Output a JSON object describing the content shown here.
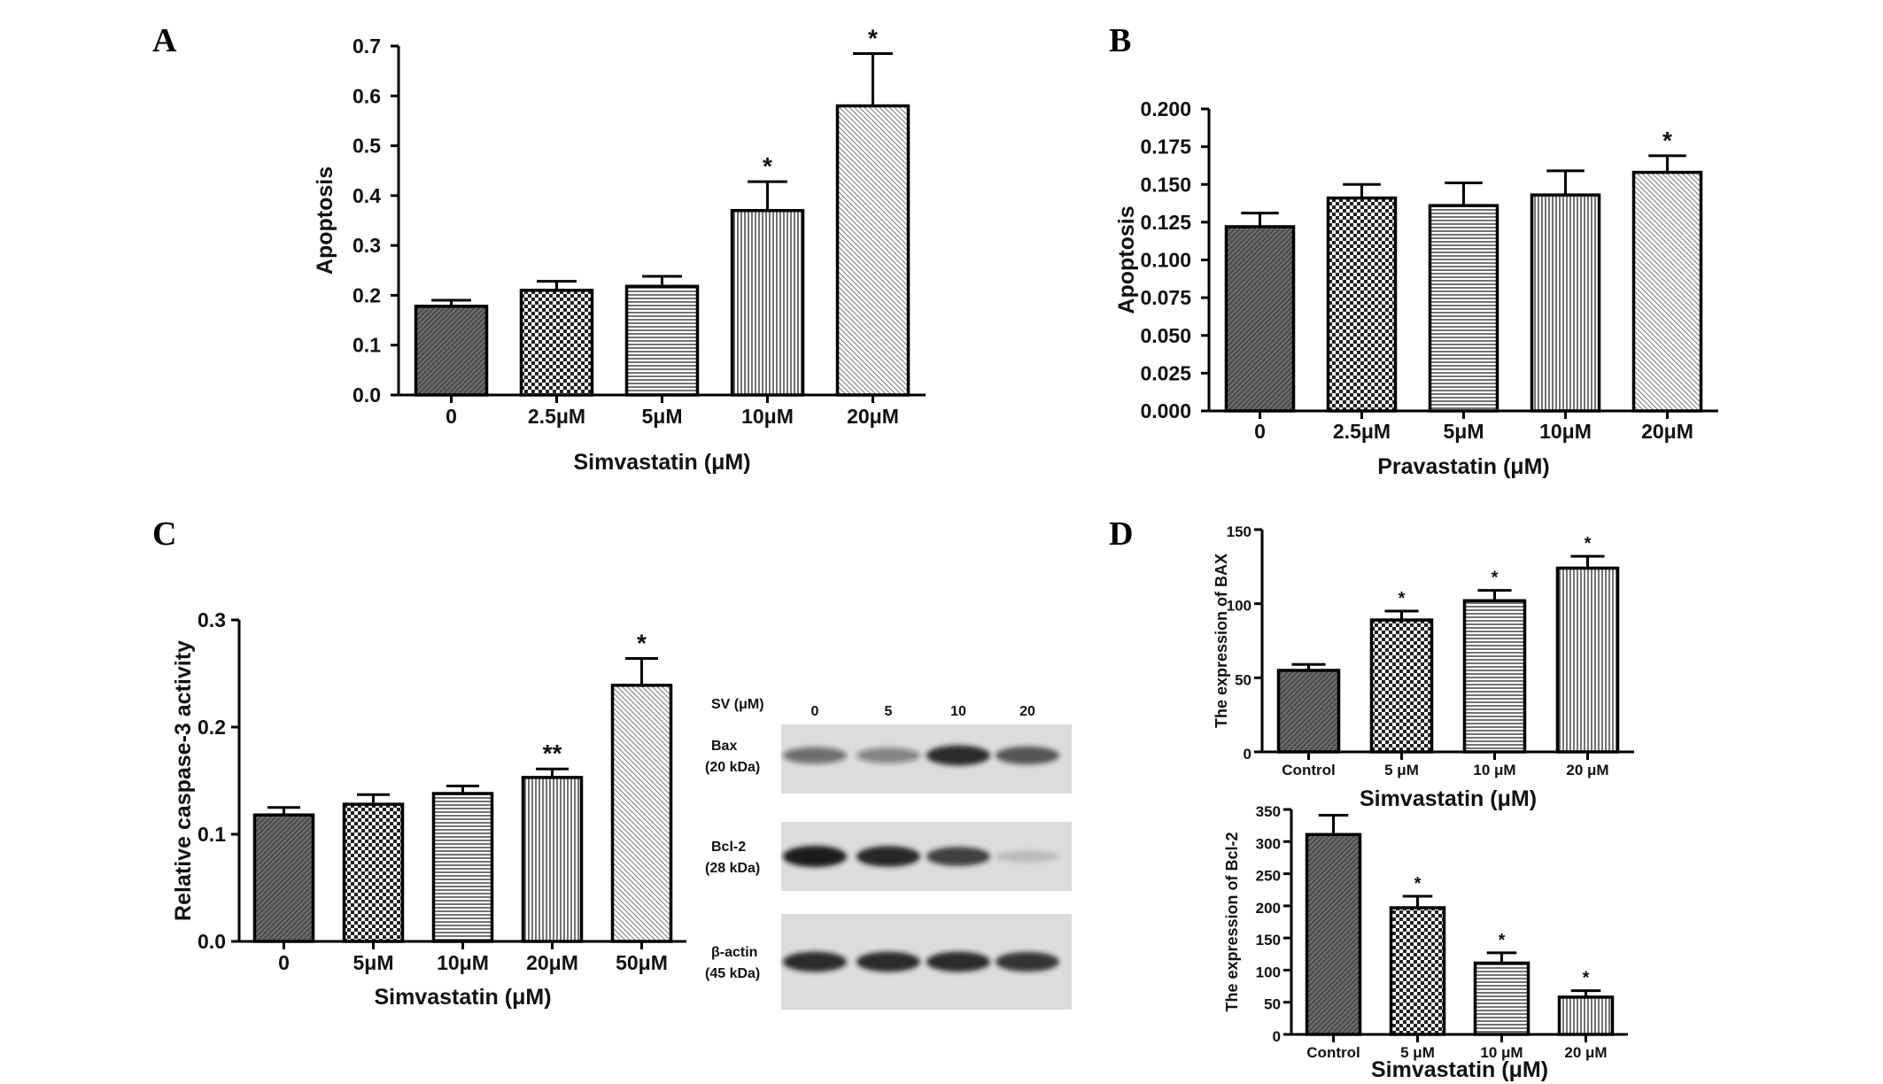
{
  "panels": {
    "A": "A",
    "B": "B",
    "C": "C",
    "D": "D"
  },
  "western_blot": {
    "header": "SV (μM)",
    "lanes": [
      "0",
      "5",
      "10",
      "20"
    ],
    "bands": [
      {
        "name": "Bax",
        "kda": "(20 kDa)",
        "intensity": [
          0.55,
          0.45,
          0.9,
          0.7
        ]
      },
      {
        "name": "Bcl-2",
        "kda": "(28 kDa)",
        "intensity": [
          1.0,
          0.95,
          0.8,
          0.15
        ]
      },
      {
        "name": "β-actin",
        "kda": "(45 kDa)",
        "intensity": [
          0.9,
          0.9,
          0.9,
          0.85
        ]
      }
    ]
  },
  "colors": {
    "axis": "#000000",
    "bar_fill": "#8a8a8a",
    "blot_bg": "#dcdcdc",
    "band": "#1a1a1a"
  },
  "chart_data": [
    {
      "id": "A",
      "type": "bar",
      "categories": [
        "0",
        "2.5μM",
        "5μM",
        "10μM",
        "20μM"
      ],
      "values": [
        0.178,
        0.21,
        0.218,
        0.37,
        0.58
      ],
      "errors": [
        0.012,
        0.018,
        0.02,
        0.058,
        0.105
      ],
      "significance": [
        "",
        "",
        "",
        "*",
        "*"
      ],
      "xlabel": "Simvastatin (μM)",
      "ylabel": "Apoptosis",
      "ylim": [
        0,
        0.7
      ],
      "yticks": [
        "0.0",
        "0.1",
        "0.2",
        "0.3",
        "0.4",
        "0.5",
        "0.6",
        "0.7"
      ],
      "grid": false
    },
    {
      "id": "B",
      "type": "bar",
      "categories": [
        "0",
        "2.5μM",
        "5μM",
        "10μM",
        "20μM"
      ],
      "values": [
        0.122,
        0.141,
        0.136,
        0.143,
        0.158
      ],
      "errors": [
        0.009,
        0.009,
        0.015,
        0.016,
        0.011
      ],
      "significance": [
        "",
        "",
        "",
        "",
        "*"
      ],
      "xlabel": "Pravastatin (μM)",
      "ylabel": "Apoptosis",
      "ylim": [
        0,
        0.2
      ],
      "yticks": [
        "0.000",
        "0.025",
        "0.050",
        "0.075",
        "0.100",
        "0.125",
        "0.150",
        "0.175",
        "0.200"
      ],
      "grid": false
    },
    {
      "id": "C",
      "type": "bar",
      "categories": [
        "0",
        "5μM",
        "10μM",
        "20μM",
        "50μM"
      ],
      "values": [
        0.118,
        0.128,
        0.138,
        0.153,
        0.239
      ],
      "errors": [
        0.007,
        0.009,
        0.007,
        0.008,
        0.025
      ],
      "significance": [
        "",
        "",
        "",
        "**",
        "*"
      ],
      "xlabel": "Simvastatin (μM)",
      "ylabel": "Relative caspase-3 activity",
      "ylim": [
        0,
        0.3
      ],
      "yticks": [
        "0.0",
        "0.1",
        "0.2",
        "0.3"
      ],
      "grid": false
    },
    {
      "id": "D-BAX",
      "type": "bar",
      "categories": [
        "Control",
        "5 μM",
        "10 μM",
        "20 μM"
      ],
      "values": [
        55,
        89,
        102,
        124
      ],
      "errors": [
        4,
        6,
        7,
        8
      ],
      "significance": [
        "",
        "*",
        "*",
        "*"
      ],
      "xlabel": "Simvastatin (μM)",
      "ylabel": "The expression of BAX",
      "ylim": [
        0,
        150
      ],
      "yticks": [
        "0",
        "50",
        "100",
        "150"
      ],
      "grid": false
    },
    {
      "id": "D-Bcl2",
      "type": "bar",
      "categories": [
        "Control",
        "5 μM",
        "10 μM",
        "20 μM"
      ],
      "values": [
        311,
        197,
        111,
        58
      ],
      "errors": [
        30,
        18,
        16,
        10
      ],
      "significance": [
        "",
        "*",
        "*",
        "*"
      ],
      "xlabel": "Simvastatin (μM)",
      "ylabel": "The expression of Bcl-2",
      "ylim": [
        0,
        350
      ],
      "yticks": [
        "0",
        "50",
        "100",
        "150",
        "200",
        "250",
        "300",
        "350"
      ],
      "grid": false
    }
  ]
}
